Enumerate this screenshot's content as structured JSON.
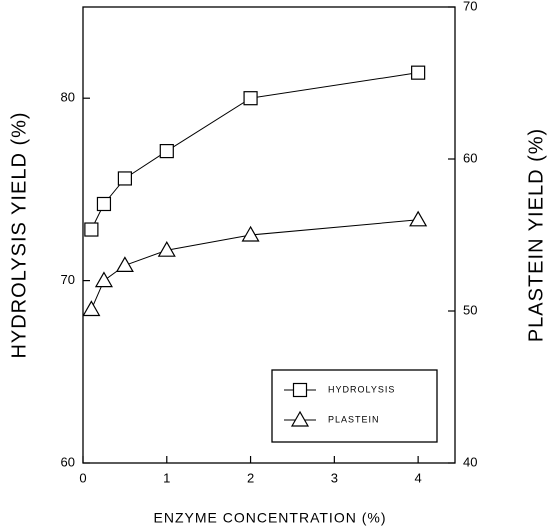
{
  "chart_data": {
    "type": "line",
    "x_label": "ENZYME CONCENTRATION (%)",
    "y_label": "HYDROLYSIS YIELD (%)",
    "y2_label": "PLASTEIN YIELD (%)",
    "xlim": [
      0,
      4.44
    ],
    "xticks": [
      0,
      1,
      2,
      3,
      4
    ],
    "ylim": [
      60,
      85
    ],
    "yticks": [
      60,
      70,
      80
    ],
    "y2lim": [
      40,
      70
    ],
    "y2ticks": [
      40,
      50,
      60,
      70
    ],
    "legend": "lower right",
    "series": [
      {
        "name": "HYDROLYSIS",
        "color": "#000000",
        "marker": "square",
        "x": [
          0.1,
          0.25,
          0.5,
          1,
          2,
          4
        ],
        "values": [
          72.8,
          74.2,
          75.6,
          77.1,
          80,
          81.4
        ]
      },
      {
        "name": "PLASTEIN",
        "color": "#000000",
        "marker": "triangle",
        "axis": "y2",
        "x": [
          0.1,
          0.25,
          0.5,
          1,
          2,
          4
        ],
        "values": [
          50.1,
          52,
          53,
          54,
          55,
          56
        ]
      }
    ]
  }
}
